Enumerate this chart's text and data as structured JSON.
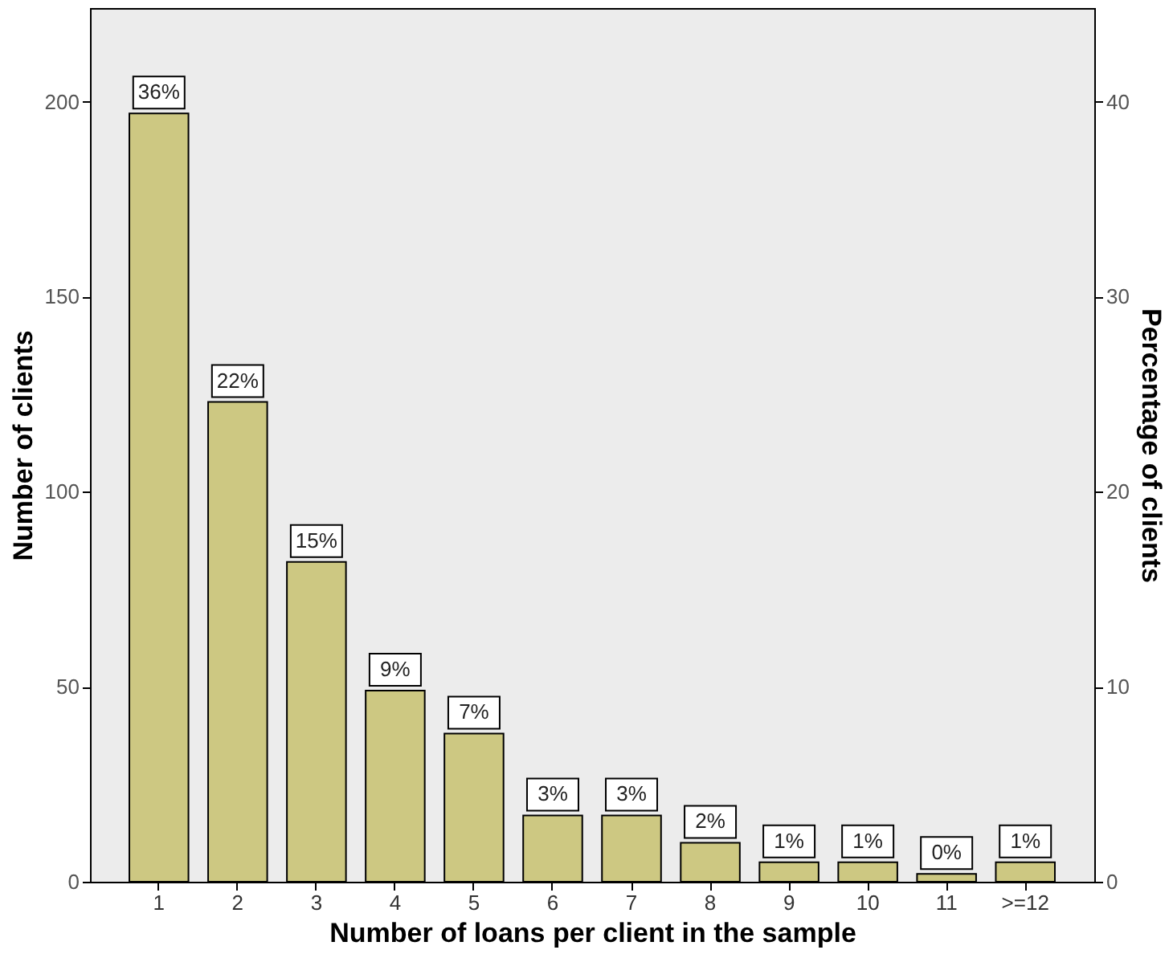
{
  "chart_data": {
    "type": "bar",
    "xlabel": "Number of loans per client in the sample",
    "ylabel": "Number of clients",
    "y2label": "Percentage of clients",
    "categories": [
      "1",
      "2",
      "3",
      "4",
      "5",
      "6",
      "7",
      "8",
      "9",
      "10",
      "11",
      ">=12"
    ],
    "values": [
      197,
      123,
      82,
      49,
      38,
      17,
      17,
      10,
      5,
      5,
      2,
      5
    ],
    "annotations": [
      {
        "text": "36%",
        "x": "1",
        "y": 197
      },
      {
        "text": "22%",
        "x": "2",
        "y": 123
      },
      {
        "text": "15%",
        "x": "3",
        "y": 82
      },
      {
        "text": "9%",
        "x": "4",
        "y": 49
      },
      {
        "text": "7%",
        "x": "5",
        "y": 38
      },
      {
        "text": "3%",
        "x": "6",
        "y": 17
      },
      {
        "text": "3%",
        "x": "7",
        "y": 17
      },
      {
        "text": "2%",
        "x": "8",
        "y": 10
      },
      {
        "text": "1%",
        "x": "9",
        "y": 5
      },
      {
        "text": "1%",
        "x": "10",
        "y": 5
      },
      {
        "text": "0%",
        "x": "11",
        "y": 2
      },
      {
        "text": "1%",
        "x": ">=12",
        "y": 5
      }
    ],
    "color": "#cdc882",
    "ylim": [
      0,
      224
    ],
    "yticks": [
      0,
      50,
      100,
      150,
      200
    ],
    "y2lim": [
      0,
      44.8
    ],
    "y2ticks": [
      0,
      10,
      20,
      30,
      40
    ],
    "grid": false
  }
}
